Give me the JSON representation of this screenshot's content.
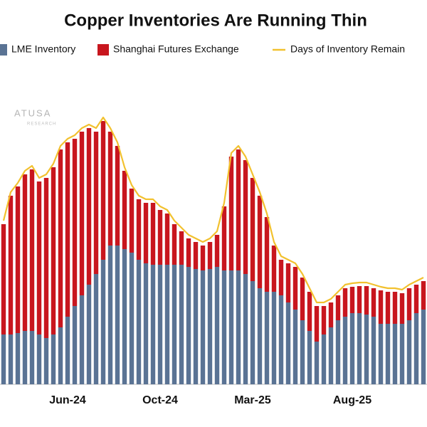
{
  "chart_data": {
    "type": "stacked-bar-line",
    "title": "Copper Inventories Are Running Thin",
    "annotations": [
      "ATUSA",
      "RESEARCH"
    ],
    "categories": [
      null,
      null,
      null,
      null,
      null,
      null,
      null,
      null,
      null,
      "Jun-24",
      null,
      null,
      null,
      null,
      null,
      null,
      null,
      null,
      null,
      null,
      null,
      null,
      "Oct-24",
      null,
      null,
      null,
      null,
      null,
      null,
      null,
      null,
      null,
      null,
      null,
      null,
      "Mar-25",
      null,
      null,
      null,
      null,
      null,
      null,
      null,
      null,
      null,
      null,
      null,
      null,
      null,
      "Aug-25",
      null,
      null,
      null,
      null,
      null,
      null,
      null,
      null,
      null,
      null
    ],
    "series": [
      {
        "name": "LME Inventory",
        "color": "#5a7394",
        "kind": "bar",
        "values": [
          70,
          70,
          72,
          75,
          75,
          70,
          65,
          70,
          80,
          95,
          110,
          125,
          140,
          155,
          175,
          195,
          195,
          190,
          185,
          175,
          170,
          168,
          168,
          168,
          168,
          168,
          165,
          162,
          160,
          162,
          165,
          160,
          160,
          160,
          155,
          145,
          135,
          130,
          130,
          125,
          115,
          105,
          90,
          75,
          60,
          70,
          80,
          90,
          95,
          100,
          100,
          98,
          95,
          85,
          85,
          85,
          85,
          90,
          100,
          105
        ]
      },
      {
        "name": "Shanghai Futures Exchange",
        "color": "#c8161e",
        "kind": "bar",
        "values": [
          155,
          195,
          206,
          220,
          227,
          215,
          225,
          235,
          250,
          245,
          235,
          230,
          220,
          200,
          195,
          160,
          140,
          110,
          90,
          85,
          85,
          87,
          77,
          72,
          57,
          47,
          40,
          38,
          35,
          38,
          45,
          90,
          160,
          170,
          160,
          145,
          130,
          105,
          65,
          50,
          55,
          60,
          60,
          55,
          50,
          40,
          35,
          35,
          40,
          37,
          38,
          40,
          40,
          47,
          45,
          45,
          43,
          45,
          40,
          40
        ]
      },
      {
        "name": "Days of Inventory Remain",
        "color": "#f2c12e",
        "kind": "line",
        "values": [
          230,
          270,
          283,
          300,
          307,
          290,
          295,
          310,
          335,
          345,
          350,
          360,
          365,
          360,
          375,
          360,
          340,
          305,
          280,
          265,
          260,
          260,
          250,
          245,
          230,
          220,
          210,
          205,
          200,
          205,
          215,
          255,
          325,
          335,
          320,
          295,
          270,
          240,
          200,
          180,
          175,
          170,
          155,
          135,
          115,
          115,
          120,
          130,
          140,
          142,
          143,
          143,
          140,
          137,
          135,
          135,
          133,
          140,
          145,
          150
        ]
      }
    ],
    "ylim": [
      0,
      440
    ]
  }
}
